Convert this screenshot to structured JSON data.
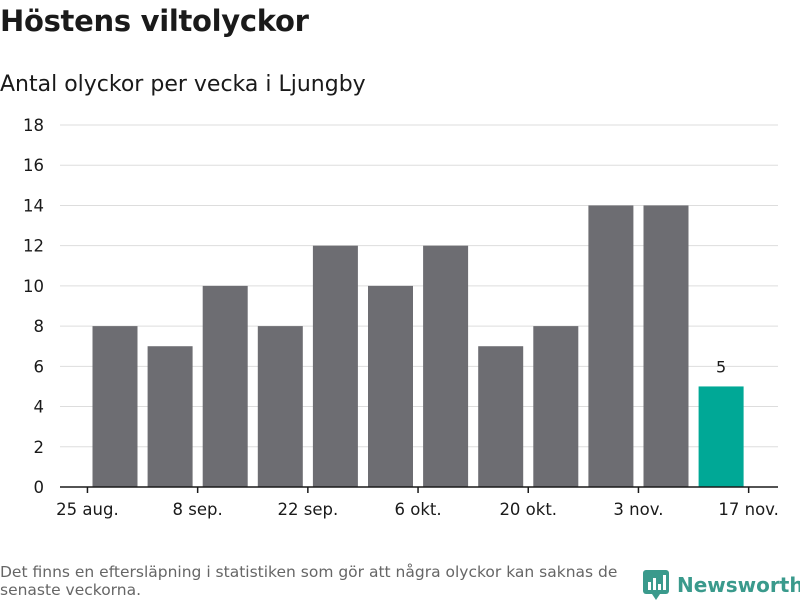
{
  "header": {
    "title": "Höstens viltolyckor",
    "subtitle": "Antal olyckor per vecka i Ljungby"
  },
  "chart_data": {
    "type": "bar",
    "title": "Höstens viltolyckor",
    "subtitle": "Antal olyckor per vecka i Ljungby",
    "xlabel": "",
    "ylabel": "",
    "ylim": [
      0,
      18
    ],
    "yticks": [
      0,
      2,
      4,
      6,
      8,
      10,
      12,
      14,
      16,
      18
    ],
    "xticks": [
      "25 aug.",
      "8 sep.",
      "22 sep.",
      "6 okt.",
      "20 okt.",
      "3 nov.",
      "17 nov."
    ],
    "grid": true,
    "values": [
      8,
      7,
      10,
      8,
      12,
      10,
      12,
      7,
      8,
      14,
      14,
      5
    ],
    "highlight_index": 11,
    "highlight_label": "5",
    "colors": {
      "bar": "#6d6d72",
      "highlight": "#00a896",
      "grid": "#dddddd",
      "axis": "#1a1a1a"
    }
  },
  "footer": {
    "note": "Det finns en eftersläpning i statistiken som gör att några olyckor kan saknas de senaste veckorna.",
    "brand": "Newsworthy",
    "brand_icon": "newsworthy-logo-icon"
  }
}
